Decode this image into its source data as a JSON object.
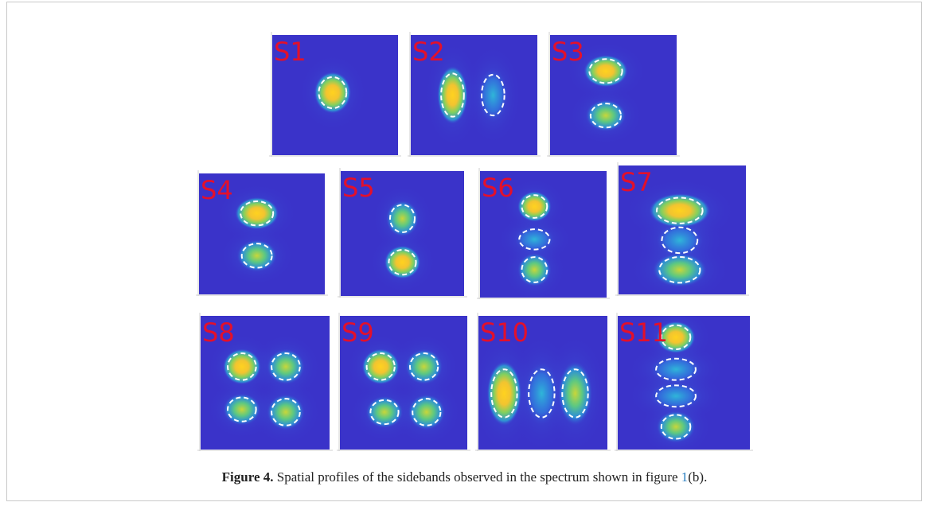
{
  "figure": {
    "panels": [
      {
        "label": "S1"
      },
      {
        "label": "S2"
      },
      {
        "label": "S3"
      },
      {
        "label": "S4"
      },
      {
        "label": "S5"
      },
      {
        "label": "S6"
      },
      {
        "label": "S7"
      },
      {
        "label": "S8"
      },
      {
        "label": "S9"
      },
      {
        "label": "S10"
      },
      {
        "label": "S11"
      }
    ],
    "caption": {
      "label": "Figure 4.",
      "text": "Spatial profiles of the sidebands observed in the spectrum shown in figure",
      "link": "1",
      "suffix": "(b)."
    }
  }
}
